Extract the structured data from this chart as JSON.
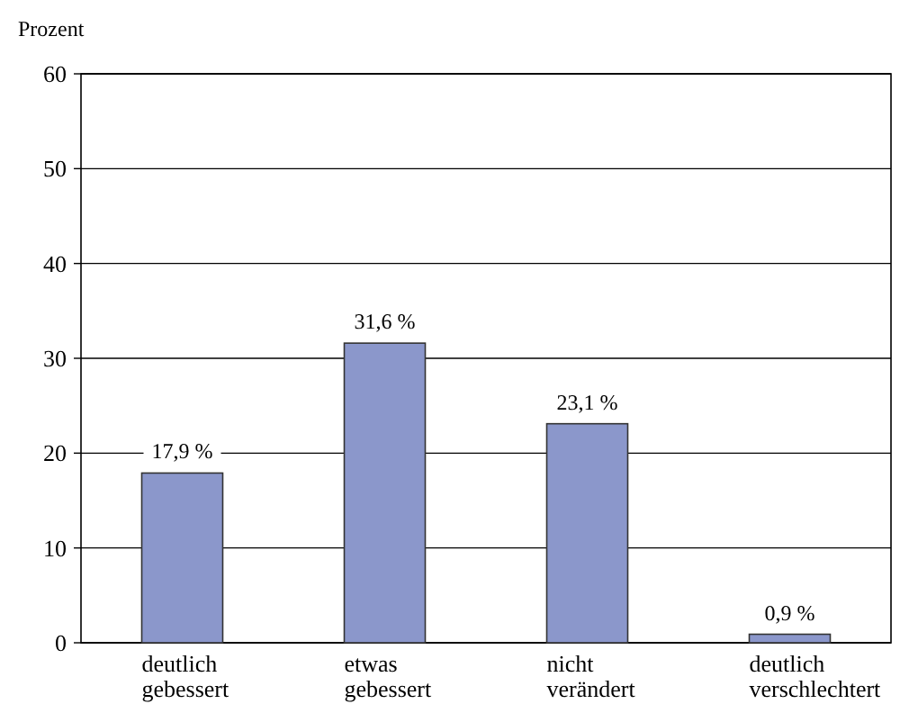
{
  "chart_data": {
    "type": "bar",
    "ylabel": "Prozent",
    "categories": [
      "deutlich gebessert",
      "etwas gebessert",
      "nicht verändert",
      "deutlich verschlechtert"
    ],
    "values": [
      17.9,
      31.6,
      23.1,
      0.9
    ],
    "value_labels": [
      "17,9 %",
      "31,6 %",
      "23,1 %",
      "0,9 %"
    ],
    "color": "#8b97cb",
    "ylim": [
      0,
      60
    ],
    "yticks": [
      0,
      10,
      20,
      30,
      40,
      50,
      60
    ],
    "grid": "y"
  }
}
